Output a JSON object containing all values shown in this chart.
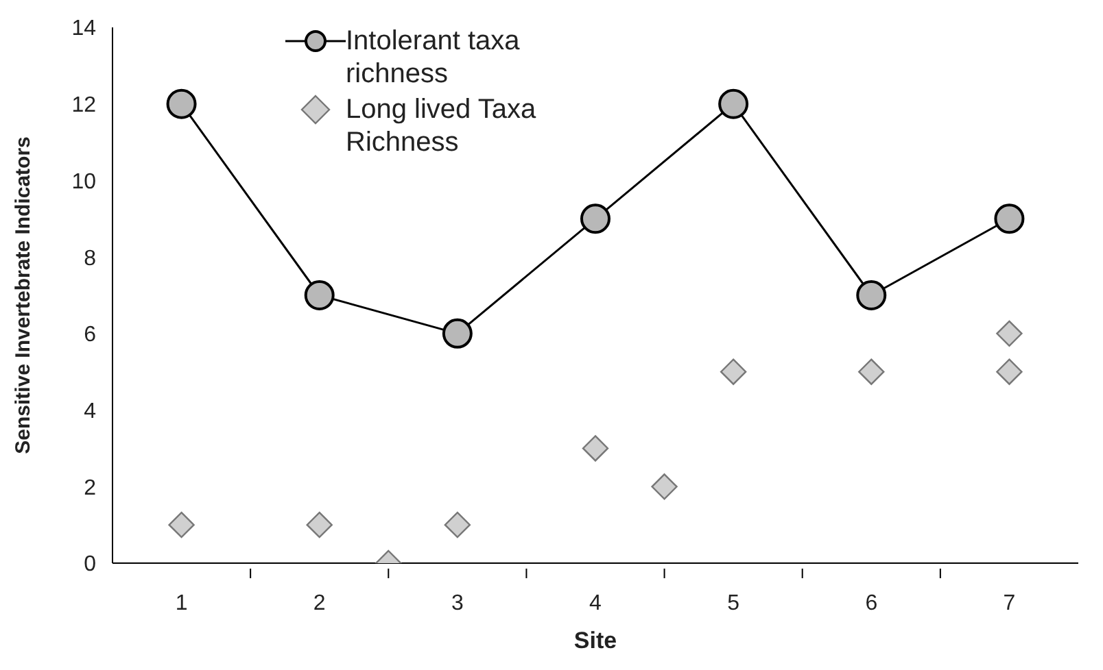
{
  "chart_data": {
    "type": "line",
    "xlabel": "Site",
    "ylabel": "Sensitive Invertebrate Indicators",
    "xlim": [
      0.5,
      7.5
    ],
    "xticks": [
      1,
      {
        "value": 1.5,
        "label": null
      },
      2,
      {
        "value": 2.5,
        "label": null
      },
      3,
      {
        "value": 3.5,
        "label": null
      },
      4,
      {
        "value": 4.5,
        "label": null
      },
      5,
      {
        "value": 5.5,
        "label": null
      },
      6,
      {
        "value": 6.5,
        "label": null
      },
      7
    ],
    "ylim": [
      0,
      14
    ],
    "yticks": [
      0,
      2,
      4,
      6,
      8,
      10,
      12,
      14
    ],
    "grid": false,
    "legend": "top",
    "series": [
      {
        "name": "Intolerant taxa richness",
        "color": "#b8b8b8",
        "marker": "circle",
        "x": [
          1,
          2,
          3,
          4,
          5,
          6,
          7
        ],
        "values": [
          12,
          7,
          6,
          9,
          12,
          7,
          9
        ]
      },
      {
        "name": "Long lived Taxa Richness",
        "type": "scatter",
        "color": "#d0d0d0",
        "marker": "diamond",
        "x": [
          1,
          2,
          2.5,
          3,
          4,
          4.5,
          5,
          6,
          7,
          7
        ],
        "values": [
          1,
          1,
          0,
          1,
          3,
          2,
          5,
          5,
          6,
          5
        ]
      }
    ]
  }
}
